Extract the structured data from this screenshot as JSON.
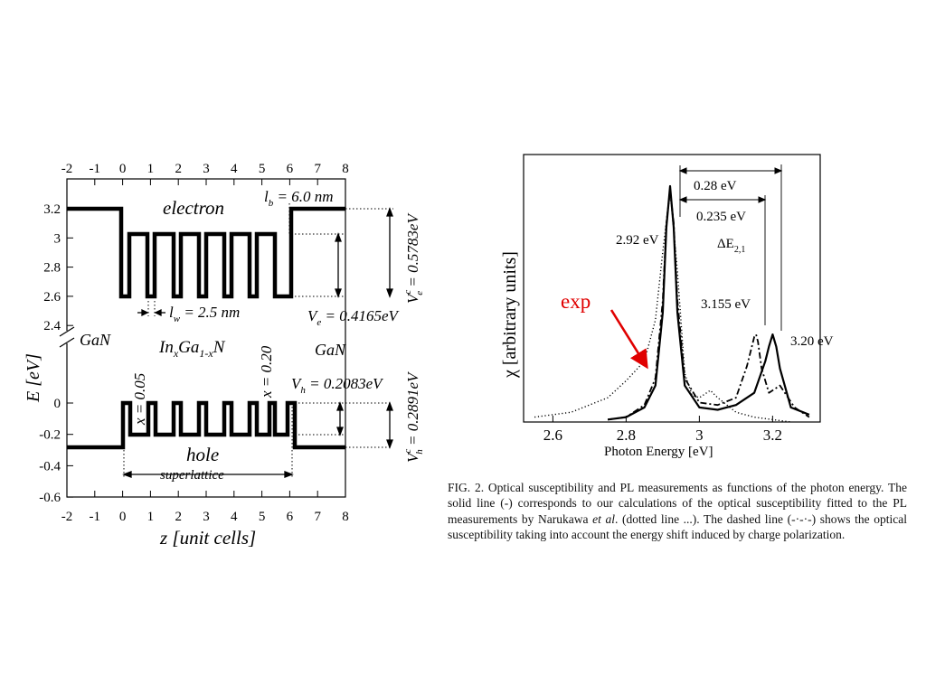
{
  "colors": {
    "annotation_red": "#e00000",
    "ink": "#000000"
  },
  "left_figure": {
    "top_axis_ticks": [
      "-2",
      "-1",
      "0",
      "1",
      "2",
      "3",
      "4",
      "5",
      "6",
      "7",
      "8"
    ],
    "bottom_axis_ticks": [
      "-2",
      "-1",
      "0",
      "1",
      "2",
      "3",
      "4",
      "5",
      "6",
      "7",
      "8"
    ],
    "upper_y_ticks": [
      "3.2",
      "3",
      "2.8",
      "2.6",
      "2.4"
    ],
    "lower_y_ticks": [
      "0",
      "-0.2",
      "-0.4",
      "-0.6"
    ],
    "y_label": "E [eV]",
    "x_label": "z [unit cells]",
    "electron_label": "electron",
    "hole_label": "hole",
    "superlattice_label": "superlattice",
    "gan_left": "GaN",
    "gan_right": "GaN",
    "ingan_main": "In",
    "ingan_sub_x": "x",
    "ingan_ga": "Ga",
    "ingan_sub_1x": "1-x",
    "ingan_n": "N",
    "lb_main": "l",
    "lb_sub": "b",
    "lb_value": " = 6.0 nm",
    "lw_main": "l",
    "lw_sub": "w",
    "lw_value": " = 2.5 nm",
    "ve_main": "V",
    "ve_sub": "e",
    "ve_value": " = 0.4165eV",
    "vec_main": "V",
    "vec_sup": "c",
    "vec_sub": "e",
    "vec_value": " = 0.5783eV",
    "vh_main": "V",
    "vh_sub": "h",
    "vh_value": " = 0.2083eV",
    "vhc_main": "V",
    "vhc_sup": "c",
    "vhc_sub": "h",
    "vhc_value": " = 0.2891eV",
    "x005_label": "x = 0.05",
    "x020_label": "x = 0.20"
  },
  "chart_data": {
    "type": "line",
    "xlabel": "Photon Energy [eV]",
    "ylabel": "χ [arbitrary units]",
    "xlim": [
      2.52,
      3.33
    ],
    "ylim": [
      0,
      1.1
    ],
    "x_ticks": [
      "2.6",
      "2.8",
      "3",
      "3.2"
    ],
    "annotations": {
      "peak_1": "2.92 eV",
      "peak_2": "3.155 eV",
      "peak_3": "3.20 eV",
      "delta_1": "0.28 eV",
      "delta_2": "0.235 eV",
      "delta_e_main": "ΔE",
      "delta_e_sub": "2,1",
      "exp_label": "exp"
    },
    "series": [
      {
        "style": "solid",
        "x": [
          2.75,
          2.8,
          2.85,
          2.88,
          2.9,
          2.91,
          2.92,
          2.93,
          2.94,
          2.96,
          3.0,
          3.05,
          3.1,
          3.15,
          3.18,
          3.19,
          3.2,
          3.21,
          3.22,
          3.25,
          3.3
        ],
        "y": [
          0.01,
          0.02,
          0.06,
          0.15,
          0.45,
          0.8,
          0.97,
          0.8,
          0.45,
          0.15,
          0.06,
          0.05,
          0.07,
          0.12,
          0.25,
          0.31,
          0.36,
          0.31,
          0.22,
          0.06,
          0.03
        ]
      },
      {
        "style": "dashdot",
        "x": [
          2.75,
          2.8,
          2.85,
          2.88,
          2.9,
          2.91,
          2.92,
          2.93,
          2.94,
          2.96,
          3.0,
          3.05,
          3.1,
          3.13,
          3.15,
          3.155,
          3.16,
          3.17,
          3.19,
          3.22,
          3.26,
          3.3
        ],
        "y": [
          0.01,
          0.02,
          0.07,
          0.18,
          0.5,
          0.82,
          0.95,
          0.82,
          0.5,
          0.18,
          0.08,
          0.07,
          0.1,
          0.23,
          0.35,
          0.36,
          0.33,
          0.22,
          0.12,
          0.15,
          0.06,
          0.02
        ]
      },
      {
        "style": "dotted",
        "x": [
          2.55,
          2.65,
          2.75,
          2.8,
          2.85,
          2.88,
          2.9,
          2.92,
          2.94,
          2.96,
          2.98,
          3.0,
          3.03,
          3.05,
          3.1,
          3.15,
          3.2,
          3.25
        ],
        "y": [
          0.02,
          0.04,
          0.1,
          0.17,
          0.25,
          0.42,
          0.7,
          0.95,
          0.62,
          0.2,
          0.11,
          0.1,
          0.13,
          0.1,
          0.04,
          0.02,
          0.01,
          0.0
        ]
      }
    ]
  },
  "caption": {
    "lead": "FIG. 2. Optical susceptibility and PL measurements as functions of the photon energy. The solid line (-) corresponds to our calculations of the optical susceptibility fitted to the PL measurements by Narukawa ",
    "etal": "et al",
    "rest": ". (dotted line ...). The dashed line (-·-·-) shows the optical susceptibility taking into account the energy shift induced by charge polarization."
  }
}
